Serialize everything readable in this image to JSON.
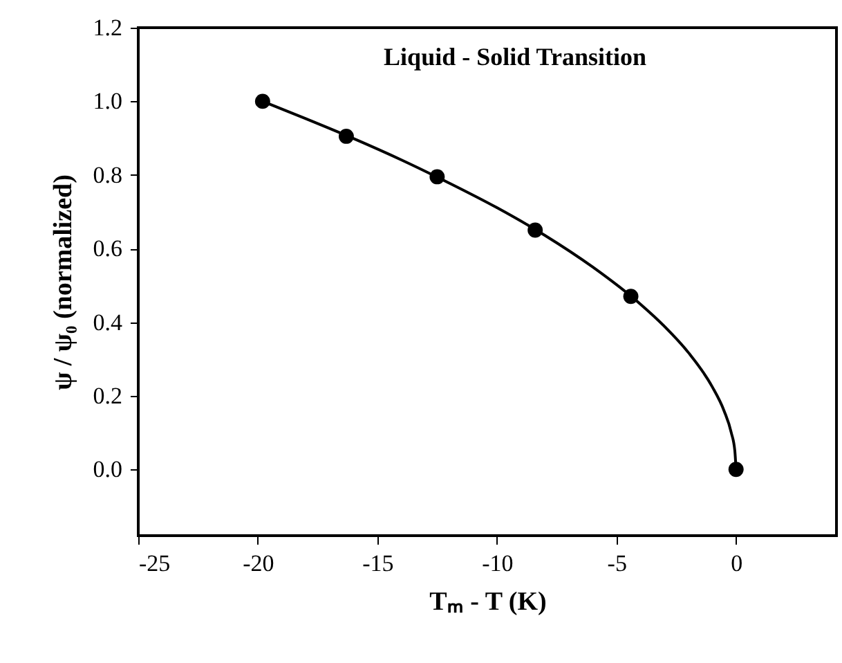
{
  "chart_data": {
    "type": "scatter",
    "title": "Liquid - Solid Transition",
    "xlabel": "Tₘ - T (K)",
    "ylabel": "ψ / ψ₀ (normalized)",
    "xlim": [
      -25,
      4.2
    ],
    "xticks": [
      -25,
      -20,
      -15,
      -10,
      -5,
      0
    ],
    "ylim": [
      -0.18,
      1.2
    ],
    "yticks": [
      {
        "value": 0,
        "label": "0.0"
      },
      {
        "value": 0.2,
        "label": "0.2"
      },
      {
        "value": 0.4,
        "label": "0.4"
      },
      {
        "value": 0.6,
        "label": "0.6"
      },
      {
        "value": 0.8,
        "label": "0.8"
      },
      {
        "value": 1,
        "label": "1.0"
      },
      {
        "value": 1.2,
        "label": "1.2"
      }
    ],
    "grid": false,
    "marker": "circle",
    "series": [
      {
        "type": "line",
        "color": "#000000",
        "line_style": "solid",
        "marker": "none",
        "x": [
          -19.8,
          -18,
          -16,
          -14,
          -12,
          -10,
          -8,
          -6,
          -4,
          -3,
          -2,
          -1,
          -0.5,
          -0.2,
          -0.05,
          0
        ],
        "values": [
          1.0,
          0.953,
          0.899,
          0.841,
          0.778,
          0.711,
          0.636,
          0.55,
          0.449,
          0.389,
          0.318,
          0.225,
          0.159,
          0.1,
          0.05,
          0
        ]
      },
      {
        "color": "#000000",
        "x": [
          -19.8,
          -16.3,
          -12.5,
          -8.4,
          -4.4,
          0
        ],
        "values": [
          1.0,
          0.905,
          0.795,
          0.65,
          0.47,
          0
        ]
      }
    ]
  }
}
